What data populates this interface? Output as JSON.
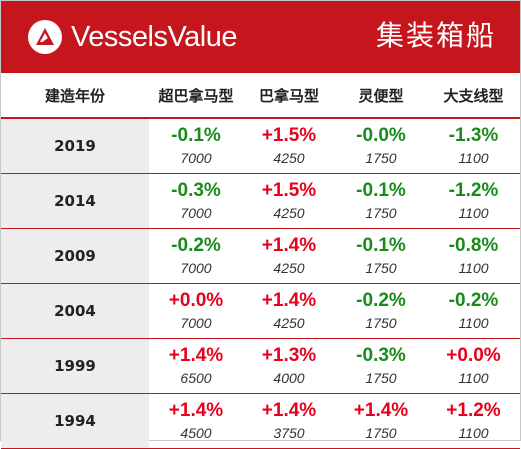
{
  "header": {
    "brand": "VesselsValue",
    "title": "集装箱船",
    "logo_icon": "vesselsvalue-logo-icon",
    "background": "#c4161c"
  },
  "table": {
    "columns": [
      "建造年份",
      "超巴拿马型",
      "巴拿马型",
      "灵便型",
      "大支线型"
    ],
    "rows": [
      {
        "year": "2019",
        "cells": [
          {
            "pct": "-0.1%",
            "value": "7000",
            "trend": "down"
          },
          {
            "pct": "+1.5%",
            "value": "4250",
            "trend": "up"
          },
          {
            "pct": "-0.0%",
            "value": "1750",
            "trend": "down"
          },
          {
            "pct": "-1.3%",
            "value": "1100",
            "trend": "down"
          }
        ]
      },
      {
        "year": "2014",
        "cells": [
          {
            "pct": "-0.3%",
            "value": "7000",
            "trend": "down"
          },
          {
            "pct": "+1.5%",
            "value": "4250",
            "trend": "up"
          },
          {
            "pct": "-0.1%",
            "value": "1750",
            "trend": "down"
          },
          {
            "pct": "-1.2%",
            "value": "1100",
            "trend": "down"
          }
        ]
      },
      {
        "year": "2009",
        "cells": [
          {
            "pct": "-0.2%",
            "value": "7000",
            "trend": "down"
          },
          {
            "pct": "+1.4%",
            "value": "4250",
            "trend": "up"
          },
          {
            "pct": "-0.1%",
            "value": "1750",
            "trend": "down"
          },
          {
            "pct": "-0.8%",
            "value": "1100",
            "trend": "down"
          }
        ]
      },
      {
        "year": "2004",
        "cells": [
          {
            "pct": "+0.0%",
            "value": "7000",
            "trend": "up"
          },
          {
            "pct": "+1.4%",
            "value": "4250",
            "trend": "up"
          },
          {
            "pct": "-0.2%",
            "value": "1750",
            "trend": "down"
          },
          {
            "pct": "-0.2%",
            "value": "1100",
            "trend": "down"
          }
        ]
      },
      {
        "year": "1999",
        "cells": [
          {
            "pct": "+1.4%",
            "value": "6500",
            "trend": "up"
          },
          {
            "pct": "+1.3%",
            "value": "4000",
            "trend": "up"
          },
          {
            "pct": "-0.3%",
            "value": "1750",
            "trend": "down"
          },
          {
            "pct": "+0.0%",
            "value": "1100",
            "trend": "up"
          }
        ]
      },
      {
        "year": "1994",
        "cells": [
          {
            "pct": "+1.4%",
            "value": "4500",
            "trend": "up"
          },
          {
            "pct": "+1.4%",
            "value": "3750",
            "trend": "up"
          },
          {
            "pct": "+1.4%",
            "value": "1750",
            "trend": "up"
          },
          {
            "pct": "+1.2%",
            "value": "1100",
            "trend": "up"
          }
        ]
      }
    ],
    "colors": {
      "up": "#e8001c",
      "down": "#1a8a1a"
    }
  }
}
